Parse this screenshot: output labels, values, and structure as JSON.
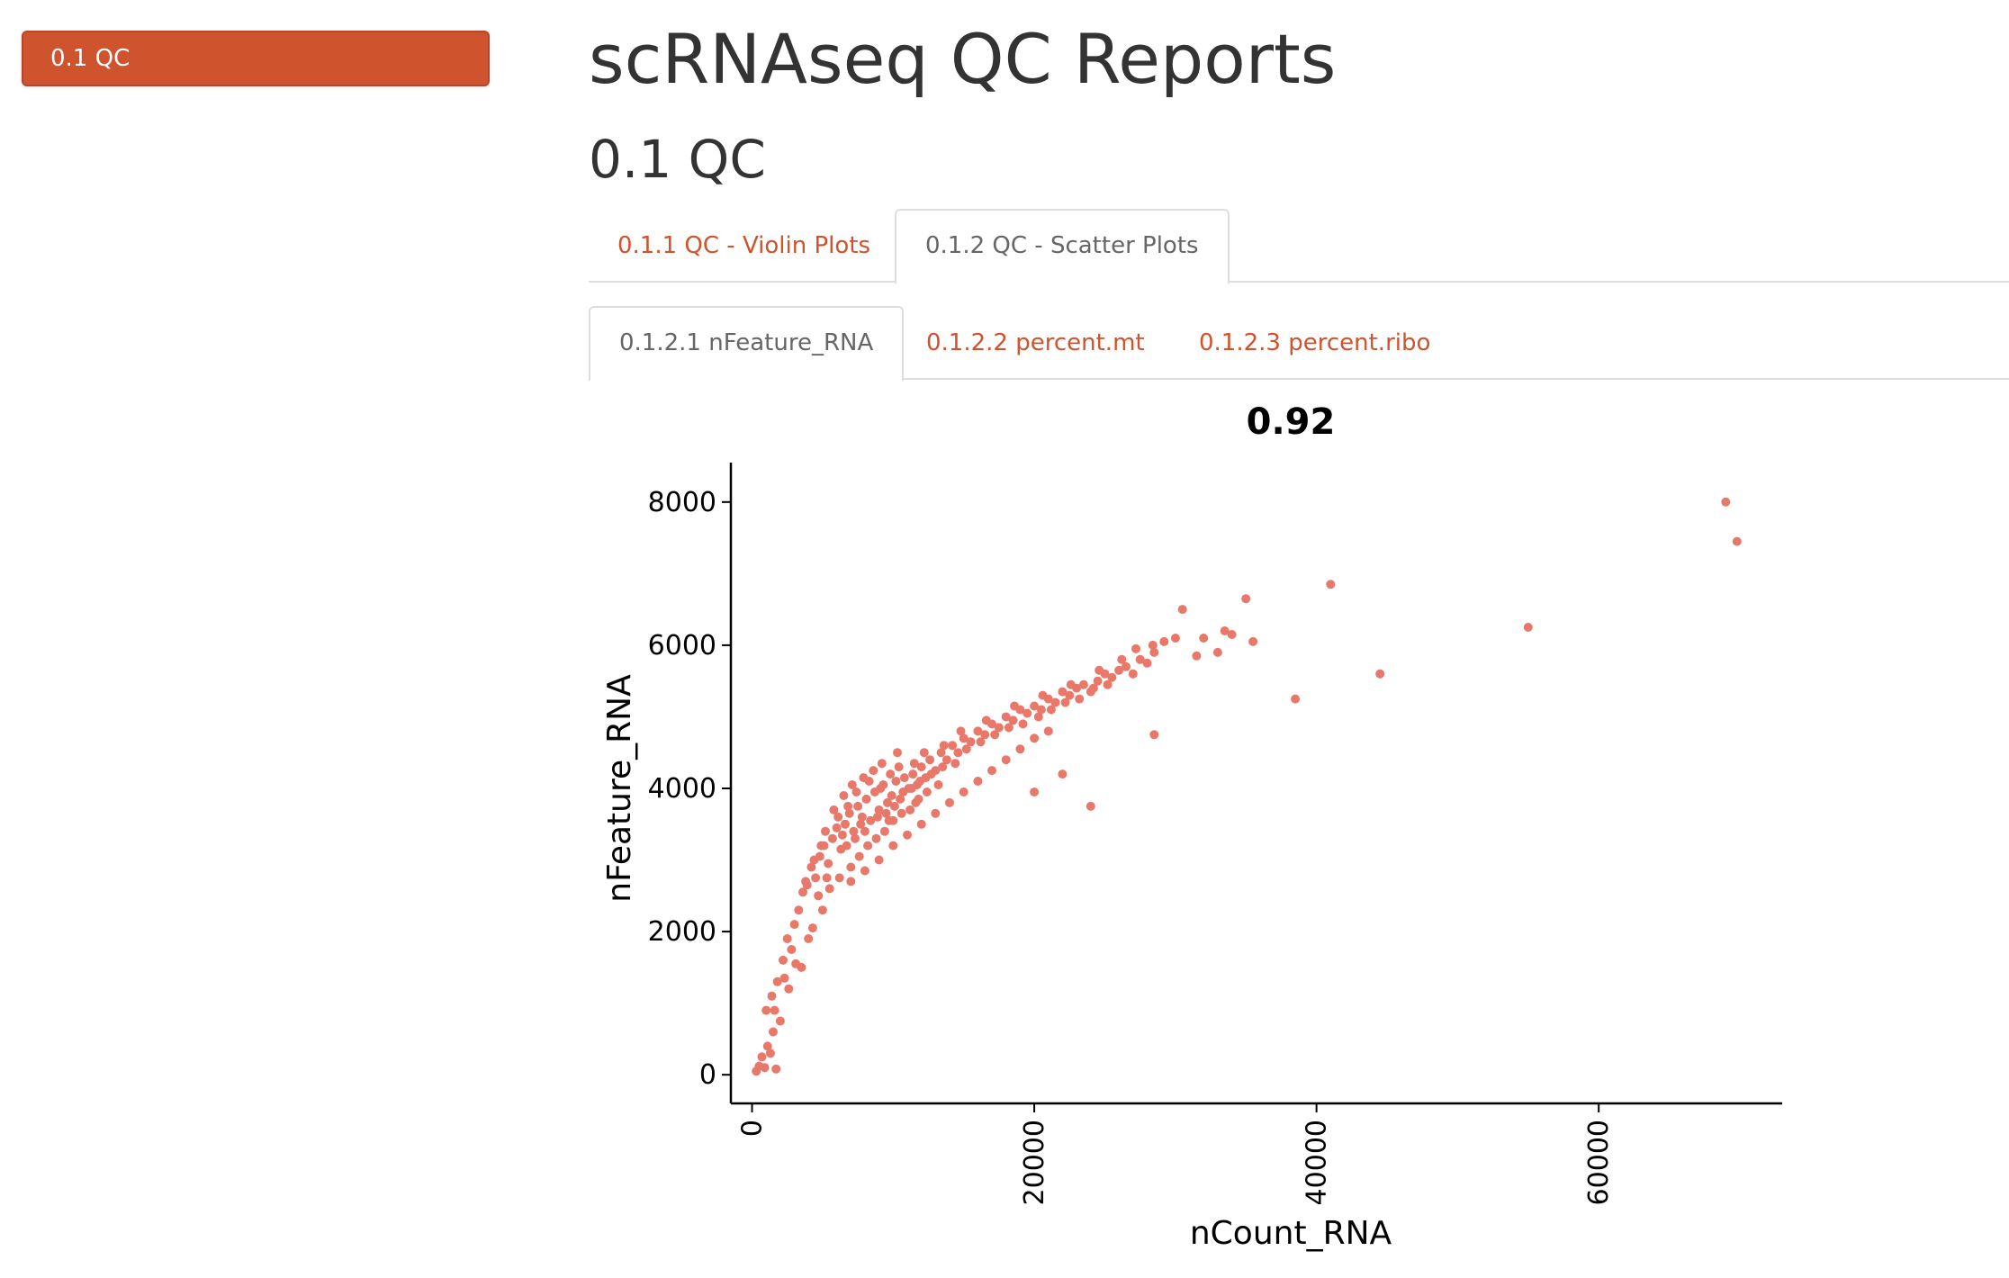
{
  "toc": {
    "items": [
      {
        "label": "0.1 QC"
      }
    ]
  },
  "header": {
    "title": "scRNAseq QC Reports"
  },
  "section": {
    "title": "0.1 QC"
  },
  "tabs_level1": [
    {
      "label": "0.1.1 QC - Violin Plots",
      "active": false
    },
    {
      "label": "0.1.2 QC - Scatter Plots",
      "active": true
    }
  ],
  "tabs_level2": [
    {
      "label": "0.1.2.1 nFeature_RNA",
      "active": true
    },
    {
      "label": "0.1.2.2 percent.mt",
      "active": false
    },
    {
      "label": "0.1.2.3 percent.ribo",
      "active": false
    }
  ],
  "colors": {
    "accent": "#cf532d",
    "point": "#e8796a",
    "text": "#333333",
    "inactive_tab": "#666666"
  },
  "chart_data": {
    "type": "scatter",
    "title": "0.92",
    "xlabel": "nCount_RNA",
    "ylabel": "nFeature_RNA",
    "xlim": [
      -1500,
      73000
    ],
    "ylim": [
      -400,
      8400
    ],
    "x_ticks": [
      0,
      20000,
      40000,
      60000
    ],
    "x_tick_labels": [
      "0",
      "20000",
      "40000",
      "60000"
    ],
    "y_ticks": [
      0,
      2000,
      4000,
      6000,
      8000
    ],
    "y_tick_labels": [
      "0",
      "2000",
      "4000",
      "6000",
      "8000"
    ],
    "grid": false,
    "point_color": "#e8796a",
    "points": [
      [
        300,
        50
      ],
      [
        500,
        120
      ],
      [
        700,
        250
      ],
      [
        900,
        100
      ],
      [
        1100,
        400
      ],
      [
        1300,
        300
      ],
      [
        1500,
        600
      ],
      [
        1700,
        80
      ],
      [
        1000,
        900
      ],
      [
        1400,
        1100
      ],
      [
        1800,
        1300
      ],
      [
        2000,
        750
      ],
      [
        2200,
        1600
      ],
      [
        2500,
        1900
      ],
      [
        2800,
        1750
      ],
      [
        3000,
        2100
      ],
      [
        3300,
        2300
      ],
      [
        3600,
        2550
      ],
      [
        3900,
        2650
      ],
      [
        4200,
        2900
      ],
      [
        4500,
        2750
      ],
      [
        4800,
        3050
      ],
      [
        5100,
        3200
      ],
      [
        5400,
        2950
      ],
      [
        5700,
        3300
      ],
      [
        6000,
        3450
      ],
      [
        6300,
        3150
      ],
      [
        6600,
        3500
      ],
      [
        6900,
        3650
      ],
      [
        7200,
        3400
      ],
      [
        7500,
        3750
      ],
      [
        7800,
        3600
      ],
      [
        8100,
        3850
      ],
      [
        8400,
        3550
      ],
      [
        8700,
        3950
      ],
      [
        9000,
        3700
      ],
      [
        9300,
        4050
      ],
      [
        9600,
        3800
      ],
      [
        9900,
        3900
      ],
      [
        10200,
        4100
      ],
      [
        10500,
        3850
      ],
      [
        10800,
        4150
      ],
      [
        11100,
        4000
      ],
      [
        11400,
        4200
      ],
      [
        11700,
        4050
      ],
      [
        12000,
        4300
      ],
      [
        12300,
        4150
      ],
      [
        12600,
        4400
      ],
      [
        13000,
        4250
      ],
      [
        13400,
        4500
      ],
      [
        13800,
        4400
      ],
      [
        14200,
        4600
      ],
      [
        14600,
        4500
      ],
      [
        15000,
        4700
      ],
      [
        15500,
        4650
      ],
      [
        16000,
        4800
      ],
      [
        16500,
        4750
      ],
      [
        17000,
        4900
      ],
      [
        17500,
        4850
      ],
      [
        18000,
        5000
      ],
      [
        18500,
        4950
      ],
      [
        19000,
        5100
      ],
      [
        19500,
        5050
      ],
      [
        20000,
        5150
      ],
      [
        20500,
        5100
      ],
      [
        21000,
        5250
      ],
      [
        21500,
        5200
      ],
      [
        22000,
        5350
      ],
      [
        22500,
        5300
      ],
      [
        23000,
        5400
      ],
      [
        23500,
        5450
      ],
      [
        24000,
        5350
      ],
      [
        24500,
        5500
      ],
      [
        25000,
        5600
      ],
      [
        25500,
        5550
      ],
      [
        26000,
        5650
      ],
      [
        26500,
        5700
      ],
      [
        27000,
        5600
      ],
      [
        27500,
        5800
      ],
      [
        28000,
        5750
      ],
      [
        28500,
        5900
      ],
      [
        3500,
        1500
      ],
      [
        4000,
        1900
      ],
      [
        5000,
        2300
      ],
      [
        5500,
        2600
      ],
      [
        6200,
        2750
      ],
      [
        7000,
        2900
      ],
      [
        7600,
        3050
      ],
      [
        8200,
        3200
      ],
      [
        8800,
        3300
      ],
      [
        9400,
        3400
      ],
      [
        10000,
        3550
      ],
      [
        10600,
        3650
      ],
      [
        11200,
        3700
      ],
      [
        11800,
        3850
      ],
      [
        12400,
        3950
      ],
      [
        13200,
        4050
      ],
      [
        5800,
        3700
      ],
      [
        6500,
        3900
      ],
      [
        7100,
        4050
      ],
      [
        7900,
        4150
      ],
      [
        8600,
        4250
      ],
      [
        9200,
        4350
      ],
      [
        9800,
        4200
      ],
      [
        10300,
        4500
      ],
      [
        2600,
        1200
      ],
      [
        3100,
        1550
      ],
      [
        1600,
        900
      ],
      [
        2300,
        1350
      ],
      [
        4300,
        2050
      ],
      [
        4700,
        2500
      ],
      [
        5300,
        2750
      ],
      [
        6700,
        3200
      ],
      [
        7300,
        3300
      ],
      [
        8000,
        3400
      ],
      [
        8900,
        3600
      ],
      [
        9500,
        3650
      ],
      [
        10100,
        3750
      ],
      [
        10700,
        3950
      ],
      [
        11300,
        4000
      ],
      [
        11900,
        4100
      ],
      [
        12700,
        4200
      ],
      [
        13500,
        4300
      ],
      [
        14400,
        4350
      ],
      [
        15200,
        4550
      ],
      [
        16200,
        4650
      ],
      [
        17200,
        4750
      ],
      [
        18200,
        4850
      ],
      [
        19200,
        4900
      ],
      [
        20300,
        5000
      ],
      [
        21200,
        5100
      ],
      [
        22200,
        5200
      ],
      [
        23200,
        5250
      ],
      [
        24200,
        5400
      ],
      [
        25200,
        5450
      ],
      [
        5200,
        3400
      ],
      [
        6100,
        3600
      ],
      [
        6800,
        3750
      ],
      [
        7400,
        3950
      ],
      [
        8300,
        4100
      ],
      [
        9100,
        4000
      ],
      [
        10400,
        4300
      ],
      [
        11500,
        4350
      ],
      [
        12200,
        4500
      ],
      [
        13600,
        4600
      ],
      [
        14800,
        4800
      ],
      [
        16600,
        4950
      ],
      [
        18600,
        5150
      ],
      [
        20600,
        5300
      ],
      [
        22600,
        5450
      ],
      [
        24600,
        5650
      ],
      [
        26200,
        5800
      ],
      [
        27200,
        5950
      ],
      [
        28400,
        6000
      ],
      [
        29200,
        6050
      ],
      [
        30000,
        6100
      ],
      [
        7000,
        2700
      ],
      [
        8000,
        2850
      ],
      [
        9000,
        3000
      ],
      [
        10000,
        3200
      ],
      [
        11000,
        3350
      ],
      [
        12000,
        3500
      ],
      [
        13000,
        3650
      ],
      [
        14000,
        3800
      ],
      [
        15000,
        3950
      ],
      [
        16000,
        4100
      ],
      [
        17000,
        4250
      ],
      [
        18000,
        4400
      ],
      [
        19000,
        4550
      ],
      [
        20000,
        4700
      ],
      [
        21000,
        4800
      ],
      [
        3800,
        2700
      ],
      [
        4400,
        3000
      ],
      [
        4900,
        3200
      ],
      [
        6400,
        3350
      ],
      [
        7700,
        3500
      ],
      [
        9700,
        3550
      ],
      [
        11600,
        3800
      ],
      [
        22000,
        4200
      ],
      [
        20000,
        3950
      ],
      [
        24000,
        3750
      ],
      [
        28500,
        4750
      ],
      [
        30500,
        6500
      ],
      [
        32000,
        6100
      ],
      [
        33000,
        5900
      ],
      [
        34000,
        6150
      ],
      [
        35000,
        6650
      ],
      [
        35500,
        6050
      ],
      [
        33500,
        6200
      ],
      [
        31500,
        5850
      ],
      [
        38500,
        5250
      ],
      [
        41000,
        6850
      ],
      [
        44500,
        5600
      ],
      [
        55000,
        6250
      ],
      [
        69000,
        8000
      ],
      [
        69800,
        7450
      ]
    ]
  }
}
